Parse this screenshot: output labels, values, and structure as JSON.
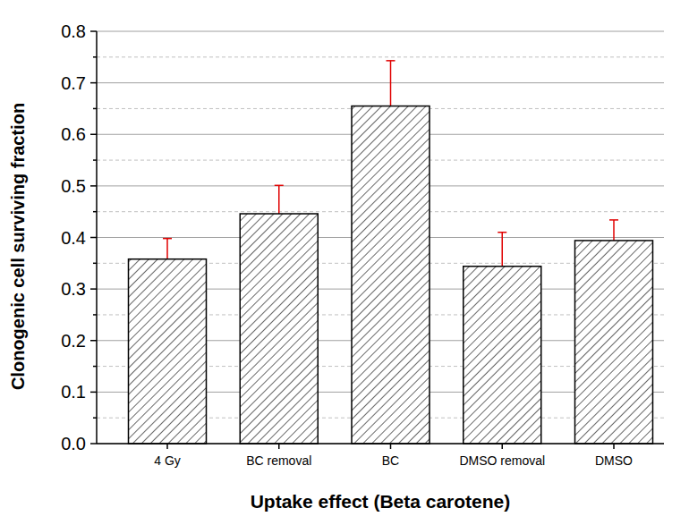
{
  "chart_data": {
    "type": "bar",
    "x_label": "Uptake effect (Beta carotene)",
    "y_label": "Clonogenic cell surviving fraction",
    "categories": [
      "4 Gy",
      "BC removal",
      "BC",
      "DMSO removal",
      "DMSO"
    ],
    "values": [
      0.358,
      0.446,
      0.655,
      0.344,
      0.394
    ],
    "errors": [
      0.04,
      0.055,
      0.088,
      0.066,
      0.04
    ],
    "color": "#000000",
    "ylim": [
      0,
      0.8
    ],
    "yticks": [
      {
        "value": 0,
        "label": "0.0"
      },
      0.1,
      0.2,
      0.3,
      0.4,
      0.5,
      0.6,
      0.7,
      0.8
    ],
    "grid": true
  }
}
